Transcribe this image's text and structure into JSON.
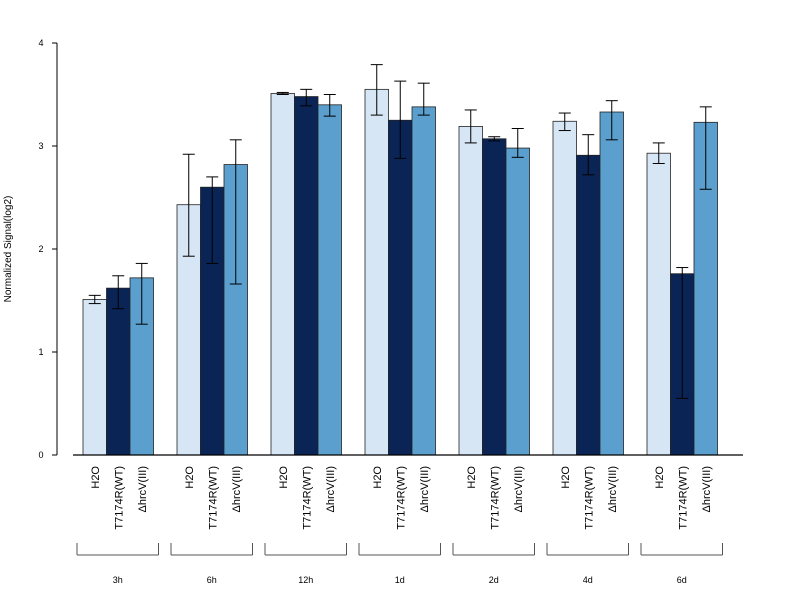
{
  "chart_data": {
    "type": "bar",
    "ylabel": "Normalized Signal(log2)",
    "ylim": [
      0,
      4
    ],
    "yticks": [
      "0",
      "1",
      "2",
      "3",
      "4"
    ],
    "groups": [
      "3h",
      "6h",
      "12h",
      "1d",
      "2d",
      "4d",
      "6d"
    ],
    "series": [
      {
        "name": "H2O",
        "color": "#d6e6f5",
        "values": [
          1.51,
          2.43,
          3.51,
          3.55,
          3.19,
          3.24,
          2.93
        ],
        "err_low": [
          1.47,
          1.93,
          3.5,
          3.3,
          3.03,
          3.15,
          2.83
        ],
        "err_high": [
          1.55,
          2.92,
          3.52,
          3.79,
          3.35,
          3.32,
          3.03
        ]
      },
      {
        "name": "T7174R(WT)",
        "color": "#0b2456",
        "values": [
          1.62,
          2.6,
          3.48,
          3.25,
          3.07,
          2.91,
          1.76
        ],
        "err_low": [
          1.42,
          1.86,
          3.39,
          2.88,
          3.05,
          2.72,
          0.55
        ],
        "err_high": [
          1.74,
          2.7,
          3.55,
          3.63,
          3.09,
          3.11,
          1.82
        ]
      },
      {
        "name": "ΔhrcV(III)",
        "color": "#5a9fcd",
        "values": [
          1.72,
          2.82,
          3.4,
          3.38,
          2.98,
          3.33,
          3.23
        ],
        "err_low": [
          1.27,
          1.66,
          3.29,
          3.3,
          2.89,
          3.06,
          2.58
        ],
        "err_high": [
          1.86,
          3.06,
          3.5,
          3.61,
          3.17,
          3.44,
          3.38
        ]
      }
    ],
    "grid": false,
    "legend": "none"
  }
}
